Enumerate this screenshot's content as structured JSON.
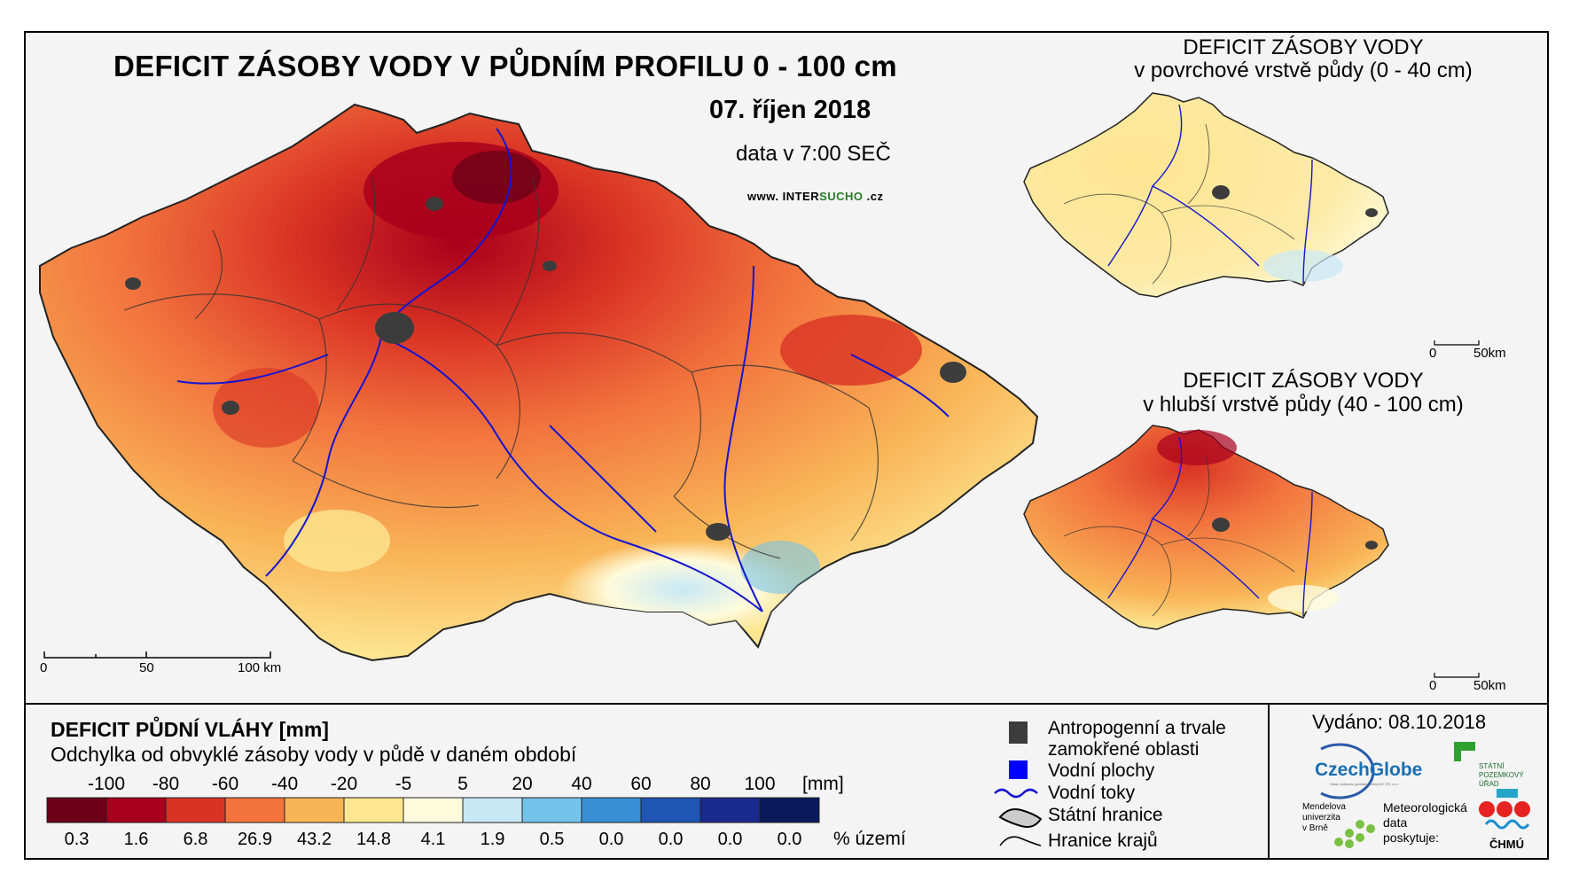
{
  "main_map": {
    "title": "DEFICIT ZÁSOBY VODY V PŮDNÍM PROFILU 0 - 100 cm",
    "date": "07. říjen 2018",
    "data_time": "data v 7:00 SEČ",
    "website_prefix": "www. INTER",
    "website_highlight": "SUCHO",
    "website_suffix": " .cz",
    "scale_labels": [
      "0",
      "50",
      "100 km"
    ]
  },
  "inset_top": {
    "title_line1": "DEFICIT ZÁSOBY VODY",
    "title_line2": "v povrchové vrstvě půdy (0 - 40 cm)",
    "scale_labels": [
      "0",
      "50km"
    ]
  },
  "inset_bottom": {
    "title_line1": "DEFICIT ZÁSOBY VODY",
    "title_line2": "v hlubší vrstvě půdy (40 - 100 cm)",
    "scale_labels": [
      "0",
      "50km"
    ]
  },
  "legend": {
    "title": "DEFICIT PŮDNÍ VLÁHY [mm]",
    "subtitle": "Odchylka od obvyklé zásoby vody v půdě v daném období",
    "ticks": [
      "-100",
      "-80",
      "-60",
      "-40",
      "-20",
      "-5",
      "5",
      "20",
      "40",
      "60",
      "80",
      "100"
    ],
    "unit": "[mm]",
    "classes": [
      {
        "color": "#6b0018",
        "percent": "0.3"
      },
      {
        "color": "#a8001c",
        "percent": "1.6"
      },
      {
        "color": "#d93324",
        "percent": "6.8"
      },
      {
        "color": "#f2733e",
        "percent": "26.9"
      },
      {
        "color": "#f9b456",
        "percent": "43.2"
      },
      {
        "color": "#fde692",
        "percent": "14.8"
      },
      {
        "color": "#fefbdc",
        "percent": "4.1"
      },
      {
        "color": "#c8e8f6",
        "percent": "1.9"
      },
      {
        "color": "#74c3ea",
        "percent": "0.5"
      },
      {
        "color": "#3a8fd4",
        "percent": "0.0"
      },
      {
        "color": "#1f55b4",
        "percent": "0.0"
      },
      {
        "color": "#1a2a8c",
        "percent": "0.0"
      },
      {
        "color": "#0a1a5a",
        "percent": "0.0"
      }
    ],
    "percent_unit": "% území"
  },
  "symbols": {
    "anthropogenic_line1": "Antropogenní a trvale",
    "anthropogenic_line2": "zamokřené oblasti",
    "water_bodies": "Vodní plochy",
    "rivers": "Vodní toky",
    "state_border": "Státní hranice",
    "region_border": "Hranice krajů"
  },
  "issued": "Vydáno: 08.10.2018",
  "logos": {
    "czechglobe": "CzechGlobe",
    "czechglobe_sub": "Ústav výzkumu globální změny AV ČR, v.v.i.",
    "spu": [
      "STÁTNÍ",
      "POZEMKOVÝ",
      "ÚŘAD"
    ],
    "mendel": [
      "Mendelova",
      "univerzita",
      "v Brně"
    ],
    "met_data": [
      "Meteorologická",
      "data",
      "poskytuje:"
    ],
    "chmu": "ČHMÚ"
  },
  "colors": {
    "river": "#1414d2",
    "anthropogenic": "#3c3c3c",
    "water_body": "#0000ff"
  }
}
